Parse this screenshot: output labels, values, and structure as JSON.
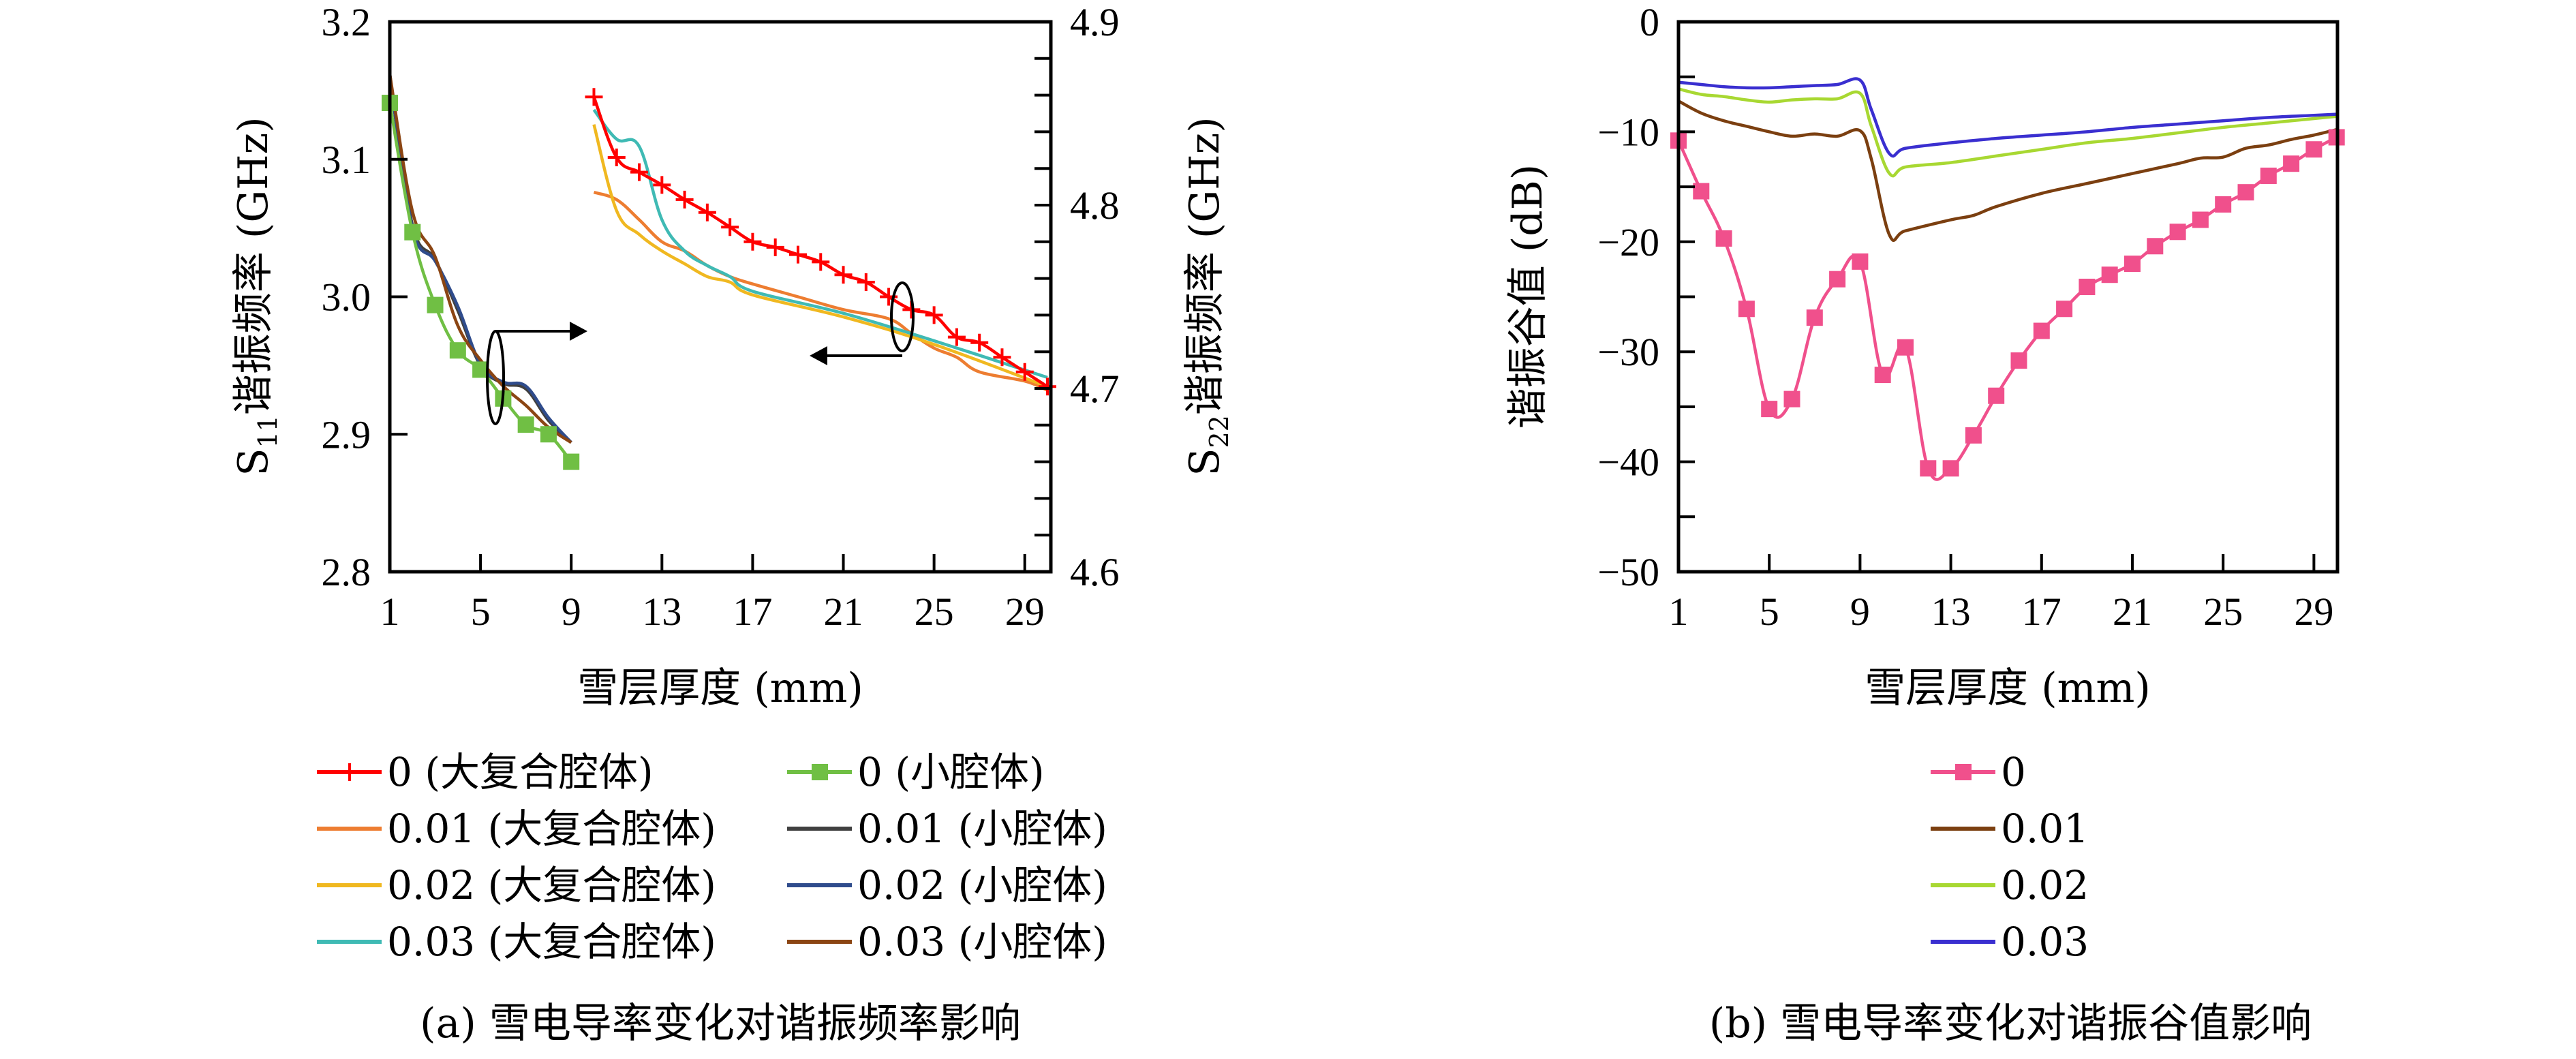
{
  "chart_data": [
    {
      "type": "line",
      "panel": "a",
      "caption": "(a) 雪电导率变化对谐振频率影响",
      "xlabel": "雪层厚度 (mm)",
      "ylabel_left": "S11谐振频率 (GHz)",
      "ylabel_left_parts": {
        "main": "S",
        "sub": "11",
        "rest": "谐振频率 (GHz)"
      },
      "ylabel_right": "S22谐振频率 (GHz)",
      "ylabel_right_parts": {
        "main": "S",
        "sub": "22",
        "rest": "谐振频率 (GHz)"
      },
      "xlim": [
        1,
        30
      ],
      "xticks": [
        1,
        5,
        9,
        13,
        17,
        21,
        25,
        29
      ],
      "ylim_left": [
        2.8,
        3.2
      ],
      "yticks_left": [
        "2.8",
        "2.9",
        "3.0",
        "3.1",
        "3.2"
      ],
      "ylim_right": [
        4.6,
        4.9
      ],
      "yticks_right": [
        "4.6",
        "4.7",
        "4.8",
        "4.9"
      ],
      "legend_placement": "bottom",
      "annotations": [
        "ellipse-arrow pointing right (small-cavity curves → left axis group)",
        "ellipse-arrow pointing left (large-cavity curves → right axis group)"
      ],
      "series": [
        {
          "name": "0 (大复合腔体)",
          "axis": "right",
          "color": "#FF0000",
          "marker": "plus",
          "x": [
            10,
            11,
            12,
            13,
            14,
            15,
            16,
            17,
            18,
            19,
            20,
            21,
            22,
            23,
            24,
            25,
            26,
            27,
            28,
            29,
            30
          ],
          "y": [
            4.859,
            4.826,
            4.818,
            4.811,
            4.803,
            4.796,
            4.788,
            4.78,
            4.777,
            4.773,
            4.769,
            4.762,
            4.758,
            4.75,
            4.743,
            4.74,
            4.728,
            4.725,
            4.717,
            4.709,
            4.701
          ]
        },
        {
          "name": "0 (小腔体)",
          "axis": "left",
          "color": "#70BF44",
          "marker": "square",
          "x": [
            1,
            2,
            3,
            4,
            5,
            6,
            7,
            8,
            9
          ],
          "y": [
            3.141,
            3.047,
            2.994,
            2.961,
            2.947,
            2.926,
            2.907,
            2.9,
            2.88
          ]
        },
        {
          "name": "0.01 (大复合腔体)",
          "axis": "right",
          "color": "#ED7D31",
          "marker": "none",
          "x": [
            10,
            11,
            12,
            13,
            14,
            15,
            16,
            17,
            19,
            21,
            23,
            24,
            25,
            26,
            27,
            29,
            30
          ],
          "y": [
            4.807,
            4.803,
            4.792,
            4.78,
            4.775,
            4.767,
            4.761,
            4.757,
            4.75,
            4.743,
            4.738,
            4.73,
            4.722,
            4.717,
            4.709,
            4.704,
            4.699
          ]
        },
        {
          "name": "0.01 (小腔体)",
          "axis": "left",
          "color": "#404040",
          "marker": "none",
          "x": [
            1,
            2,
            3,
            4,
            5,
            6,
            7,
            8,
            9
          ],
          "y": [
            3.16,
            3.052,
            3.027,
            2.99,
            2.95,
            2.937,
            2.933,
            2.91,
            2.894
          ]
        },
        {
          "name": "0.02 (大复合腔体)",
          "axis": "right",
          "color": "#F0B820",
          "marker": "none",
          "x": [
            10,
            11,
            12,
            13,
            14,
            15,
            16,
            17,
            21,
            25,
            30
          ],
          "y": [
            4.844,
            4.797,
            4.784,
            4.775,
            4.768,
            4.761,
            4.758,
            4.751,
            4.739,
            4.724,
            4.701
          ]
        },
        {
          "name": "0.02 (小腔体)",
          "axis": "left",
          "color": "#2F4C8C",
          "marker": "none",
          "x": [
            1,
            2,
            3,
            4,
            5,
            6,
            7,
            8,
            9
          ],
          "y": [
            3.162,
            3.05,
            3.026,
            2.993,
            2.951,
            2.938,
            2.935,
            2.912,
            2.894
          ]
        },
        {
          "name": "0.03 (大复合腔体)",
          "axis": "right",
          "color": "#3FBAB4",
          "marker": "none",
          "x": [
            10,
            11,
            12,
            13,
            14,
            15,
            16,
            17,
            21,
            25,
            30
          ],
          "y": [
            4.852,
            4.836,
            4.832,
            4.792,
            4.775,
            4.767,
            4.761,
            4.753,
            4.741,
            4.726,
            4.706
          ]
        },
        {
          "name": "0.03 (小腔体)",
          "axis": "left",
          "color": "#8B4513",
          "marker": "none",
          "x": [
            1,
            2,
            3,
            4,
            5,
            6,
            7,
            8,
            9
          ],
          "y": [
            3.162,
            3.062,
            3.029,
            2.979,
            2.954,
            2.935,
            2.921,
            2.905,
            2.894
          ]
        }
      ]
    },
    {
      "type": "line",
      "panel": "b",
      "caption": "(b) 雪电导率变化对谐振谷值影响",
      "xlabel": "雪层厚度 (mm)",
      "ylabel": "谐振谷值 (dB)",
      "xlim": [
        1,
        30
      ],
      "xticks": [
        1,
        5,
        9,
        13,
        17,
        21,
        25,
        29
      ],
      "ylim": [
        -50,
        0
      ],
      "yticks": [
        "−50",
        "−40",
        "−30",
        "−20",
        "−10",
        "0"
      ],
      "ytick_values": [
        -50,
        -40,
        -30,
        -20,
        -10,
        0
      ],
      "legend_placement": "bottom",
      "series": [
        {
          "name": "0",
          "color": "#F0508C",
          "marker": "square",
          "x": [
            1,
            2,
            3,
            4,
            5,
            6,
            7,
            8,
            9,
            10,
            11,
            12,
            13,
            14,
            15,
            16,
            17,
            18,
            19,
            20,
            21,
            22,
            23,
            24,
            25,
            26,
            27,
            28,
            29,
            30
          ],
          "y": [
            -10.8,
            -15.4,
            -19.7,
            -26.1,
            -35.2,
            -34.3,
            -26.9,
            -23.4,
            -21.8,
            -32.1,
            -29.6,
            -40.6,
            -40.6,
            -37.6,
            -34.0,
            -30.8,
            -28.1,
            -26.1,
            -24.1,
            -23.0,
            -22.0,
            -20.4,
            -19.1,
            -18.0,
            -16.6,
            -15.5,
            -14.0,
            -12.9,
            -11.6,
            -10.5
          ]
        },
        {
          "name": "0.01",
          "color": "#7B3F10",
          "marker": "none",
          "x": [
            1,
            2,
            3,
            4,
            5,
            6,
            7,
            8,
            9,
            9.5,
            10.3,
            11,
            13,
            14,
            15,
            17,
            19,
            21,
            23,
            24,
            25,
            26,
            27,
            28,
            29,
            30
          ],
          "y": [
            -7.2,
            -8.3,
            -9.0,
            -9.5,
            -10.0,
            -10.4,
            -10.2,
            -10.4,
            -9.9,
            -12.5,
            -19.4,
            -19.0,
            -18.0,
            -17.6,
            -16.8,
            -15.6,
            -14.7,
            -13.8,
            -12.9,
            -12.4,
            -12.3,
            -11.5,
            -11.2,
            -10.7,
            -10.3,
            -9.8
          ]
        },
        {
          "name": "0.02",
          "color": "#A8D832",
          "marker": "none",
          "x": [
            1,
            2,
            3,
            4,
            5,
            6,
            7,
            8,
            9,
            9.5,
            10.3,
            11,
            13,
            15,
            17,
            19,
            21,
            23,
            25,
            27,
            29,
            30
          ],
          "y": [
            -6.1,
            -6.6,
            -6.8,
            -7.1,
            -7.3,
            -7.1,
            -7.0,
            -7.0,
            -6.5,
            -9.5,
            -13.8,
            -13.2,
            -12.8,
            -12.2,
            -11.6,
            -11.0,
            -10.6,
            -10.1,
            -9.6,
            -9.2,
            -8.8,
            -8.6
          ]
        },
        {
          "name": "0.03",
          "color": "#3A2FD0",
          "marker": "none",
          "x": [
            1,
            2,
            3,
            4,
            5,
            6,
            7,
            8,
            9,
            9.5,
            10.3,
            11,
            13,
            15,
            17,
            19,
            21,
            23,
            25,
            27,
            29,
            30
          ],
          "y": [
            -5.5,
            -5.7,
            -5.9,
            -6.0,
            -6.0,
            -5.9,
            -5.8,
            -5.7,
            -5.3,
            -8.0,
            -12.0,
            -11.5,
            -11.0,
            -10.6,
            -10.3,
            -10.0,
            -9.6,
            -9.3,
            -9.0,
            -8.7,
            -8.5,
            -8.4
          ]
        }
      ]
    }
  ]
}
